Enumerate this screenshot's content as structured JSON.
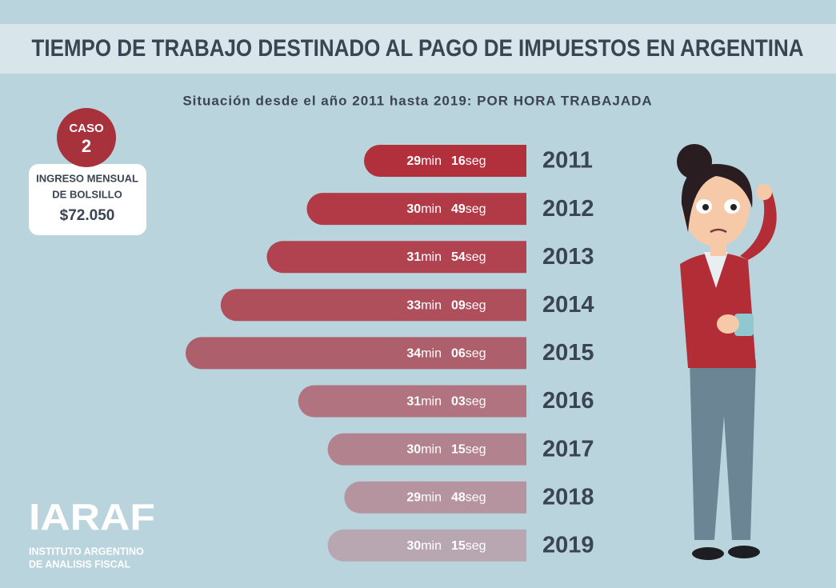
{
  "chart_data": {
    "type": "bar",
    "orientation": "horizontal",
    "title": "TIEMPO DE TRABAJO DESTINADO AL PAGO DE IMPUESTOS EN ARGENTINA",
    "subtitle": "Situación desde el año 2011 hasta 2019: POR HORA TRABAJADA",
    "categories": [
      "2011",
      "2012",
      "2013",
      "2014",
      "2015",
      "2016",
      "2017",
      "2018",
      "2019"
    ],
    "minutes": [
      29,
      30,
      31,
      33,
      34,
      31,
      30,
      29,
      30
    ],
    "seconds": [
      16,
      49,
      54,
      9,
      6,
      3,
      15,
      48,
      15
    ],
    "seconds_labels": [
      "16",
      "49",
      "54",
      "09",
      "06",
      "03",
      "15",
      "48",
      "15"
    ],
    "minutes_unit": "min",
    "seconds_unit": "seg",
    "colors": [
      "#b2303c",
      "#b23a46",
      "#b0434f",
      "#ae4f5b",
      "#ad5f6b",
      "#b17380",
      "#b2838f",
      "#b6949f",
      "#b8a6b0"
    ],
    "case": {
      "label": "CASO",
      "number": "2",
      "income_label": [
        "INGRESO MENSUAL",
        "DE BOLSILLO"
      ],
      "income": "$72.050"
    },
    "logo": {
      "name": "IARAF",
      "lines": [
        "INSTITUTO ARGENTINO",
        "DE ANALISIS FISCAL"
      ]
    }
  }
}
